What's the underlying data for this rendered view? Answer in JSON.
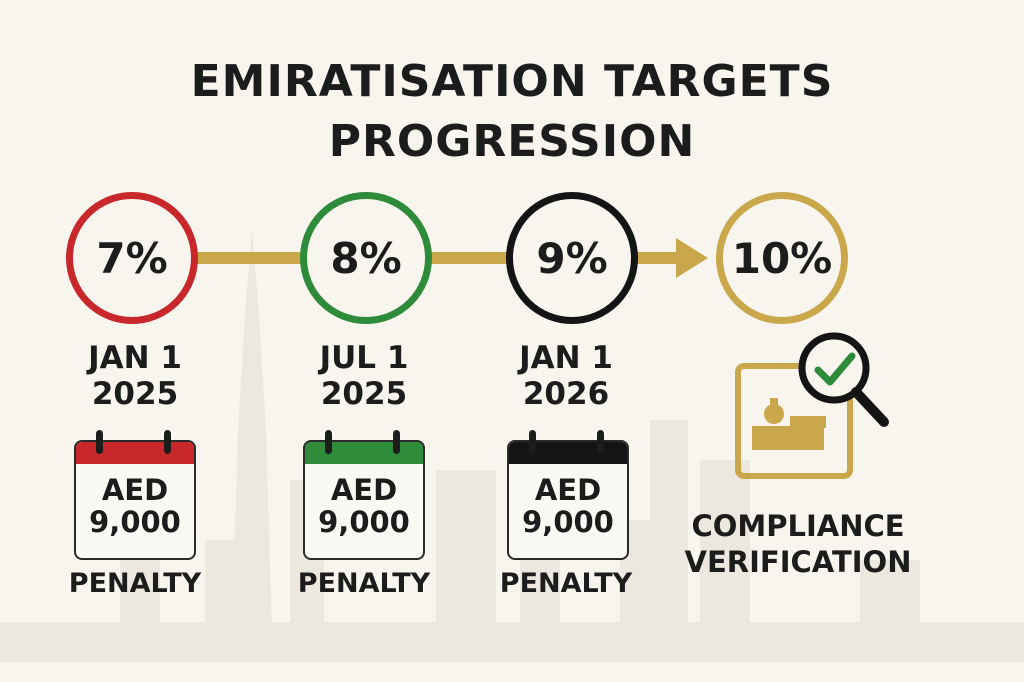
{
  "title": {
    "line1": "EMIRATISATION TARGETS",
    "line2": "PROGRESSION"
  },
  "milestones": [
    {
      "percent": "7%",
      "date_line1": "JAN 1",
      "date_line2": "2025",
      "amount_line1": "AED",
      "amount_line2": "9,000",
      "penalty": "PENALTY",
      "color": "#c8282b"
    },
    {
      "percent": "8%",
      "date_line1": "JUL 1",
      "date_line2": "2025",
      "amount_line1": "AED",
      "amount_line2": "9,000",
      "penalty": "PENALTY",
      "color": "#2e8b3a"
    },
    {
      "percent": "9%",
      "date_line1": "JAN 1",
      "date_line2": "2026",
      "amount_line1": "AED",
      "amount_line2": "9,000",
      "penalty": "PENALTY",
      "color": "#141414"
    }
  ],
  "final_target": {
    "percent": "10%",
    "color": "#c9a74a"
  },
  "compliance": {
    "line1": "COMPLIANCE",
    "line2": "VERIFICATION"
  },
  "colors": {
    "gold": "#c9a74a",
    "check_green": "#2e8b3a",
    "background": "#f8f5ef"
  },
  "icons": [
    "calendar-icon",
    "compliance-document-icon",
    "magnifier-icon",
    "checkmark-icon"
  ]
}
